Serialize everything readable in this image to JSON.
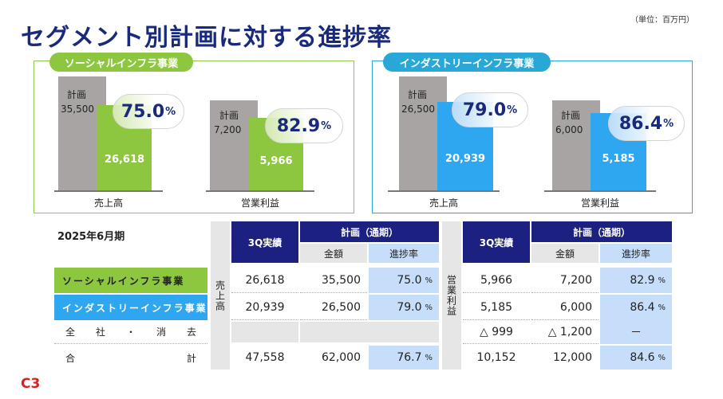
{
  "title": "セグメント別計画に対する進捗率",
  "unit": "（単位：百万円）",
  "panels": {
    "social": {
      "label": "ソーシャルインフラ事業",
      "sales": {
        "plan_label": "計画",
        "plan_value": "35,500",
        "actual": "26,618",
        "rate": "75.0",
        "pct": "%",
        "category": "売上高"
      },
      "profit": {
        "plan_label": "計画",
        "plan_value": "7,200",
        "actual": "5,966",
        "rate": "82.9",
        "pct": "%",
        "category": "営業利益"
      }
    },
    "industry": {
      "label": "インダストリーインフラ事業",
      "sales": {
        "plan_label": "計画",
        "plan_value": "26,500",
        "actual": "20,939",
        "rate": "79.0",
        "pct": "%",
        "category": "売上高"
      },
      "profit": {
        "plan_label": "計画",
        "plan_value": "6,000",
        "actual": "5,185",
        "rate": "86.4",
        "pct": "%",
        "category": "営業利益"
      }
    }
  },
  "table": {
    "period": "2025年6月期",
    "sales_group": "売上高",
    "profit_group": "営業利益",
    "col_actual": "3Q実績",
    "col_plan": "計画（通期）",
    "col_amount": "金額",
    "col_rate": "進捗率",
    "pct": "%",
    "rows": [
      {
        "label": "ソーシャルインフラ事業",
        "s_act": "26,618",
        "s_plan": "35,500",
        "s_rate": "75.0",
        "p_act": "5,966",
        "p_plan": "7,200",
        "p_rate": "82.9"
      },
      {
        "label": "インダストリーインフラ事業",
        "s_act": "20,939",
        "s_plan": "26,500",
        "s_rate": "79.0",
        "p_act": "5,185",
        "p_plan": "6,000",
        "p_rate": "86.4"
      },
      {
        "label_chars": [
          "全",
          "社",
          "・",
          "消",
          "去"
        ],
        "p_act": "△ 999",
        "p_plan": "△ 1,200",
        "p_rate": "－"
      },
      {
        "label_chars": [
          "合",
          "計"
        ],
        "s_act": "47,558",
        "s_plan": "62,000",
        "s_rate": "76.7",
        "p_act": "10,152",
        "p_plan": "12,000",
        "p_rate": "84.6"
      }
    ]
  },
  "logo": "C3"
}
